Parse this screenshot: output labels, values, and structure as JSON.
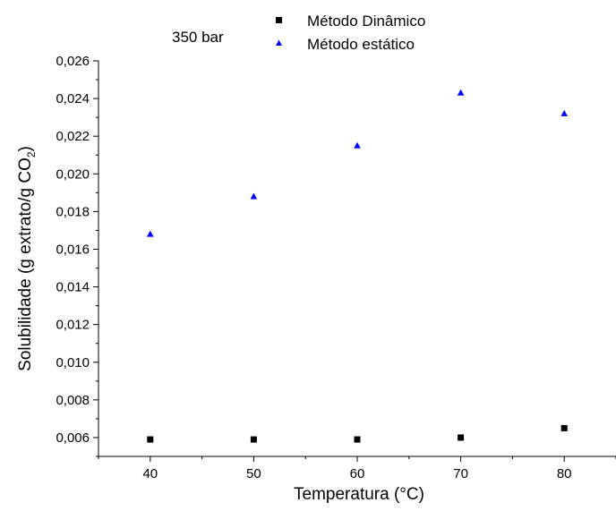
{
  "chart_data": {
    "type": "scatter",
    "annotation": "350 bar",
    "xlabel": "Temperatura (°C)",
    "ylabel": "Solubilidade (g extrato/g CO",
    "ylabel_sub": "2",
    "ylabel_close": ")",
    "xlim": [
      35,
      85
    ],
    "ylim": [
      0.005,
      0.026
    ],
    "xticks": [
      40,
      50,
      60,
      70,
      80
    ],
    "xtick_labels": [
      "40",
      "50",
      "60",
      "70",
      "80"
    ],
    "yticks": [
      0.006,
      0.008,
      0.01,
      0.012,
      0.014,
      0.016,
      0.018,
      0.02,
      0.022,
      0.024,
      0.026
    ],
    "ytick_labels": [
      "0,006",
      "0,008",
      "0,010",
      "0,012",
      "0,014",
      "0,016",
      "0,018",
      "0,020",
      "0,022",
      "0,024",
      "0,026"
    ],
    "legend_position": "top",
    "series": [
      {
        "name": "Método Dinâmico",
        "marker": "square",
        "color": "#000000",
        "x": [
          40,
          50,
          60,
          70,
          80
        ],
        "y": [
          0.0059,
          0.0059,
          0.0059,
          0.006,
          0.0065
        ]
      },
      {
        "name": "Método estático",
        "marker": "triangle",
        "color": "#0000ff",
        "x": [
          40,
          50,
          60,
          70,
          80
        ],
        "y": [
          0.0168,
          0.0188,
          0.0215,
          0.0243,
          0.0232
        ]
      }
    ]
  }
}
